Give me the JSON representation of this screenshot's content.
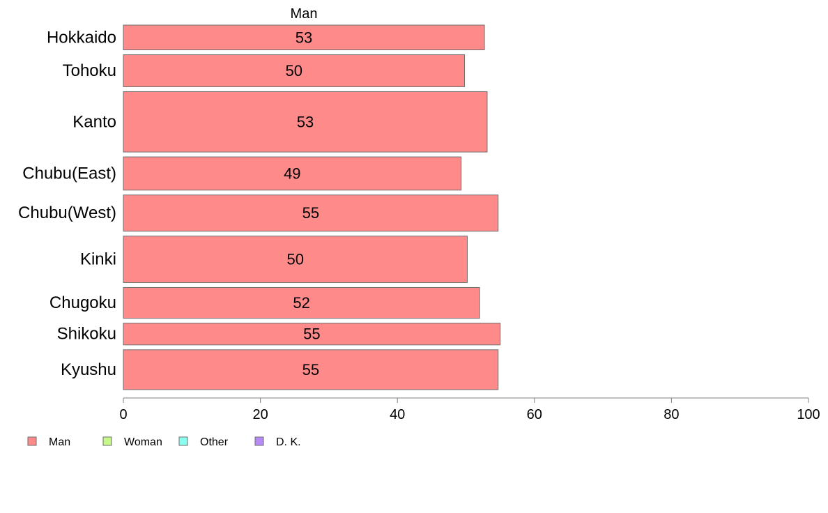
{
  "chart_data": {
    "type": "bar",
    "orientation": "horizontal",
    "title": "",
    "column_header": "Man",
    "xlabel": "",
    "ylabel": "",
    "xlim": [
      0,
      100
    ],
    "x_ticks": [
      0,
      20,
      40,
      60,
      80,
      100
    ],
    "grid": false,
    "legend_position": "bottom-left",
    "categories": [
      "Hokkaido",
      "Tohoku",
      "Kanto",
      "Chubu(East)",
      "Chubu(West)",
      "Kinki",
      "Chugoku",
      "Shikoku",
      "Kyushu"
    ],
    "relative_widths": [
      0.41,
      0.53,
      1.0,
      0.55,
      0.6,
      0.77,
      0.51,
      0.36,
      0.66
    ],
    "series": [
      {
        "name": "Man",
        "color": "#ff8a8a",
        "values": [
          52.7,
          49.8,
          53.1,
          49.3,
          54.7,
          50.2,
          52.0,
          55.0,
          54.7
        ],
        "labels": [
          "53",
          "50",
          "53",
          "49",
          "55",
          "50",
          "52",
          "55",
          "55"
        ]
      }
    ],
    "legend": [
      {
        "name": "Man",
        "color": "#ff8a8a"
      },
      {
        "name": "Woman",
        "color": "#c6f78a"
      },
      {
        "name": "Other",
        "color": "#8afff0"
      },
      {
        "name": "D. K.",
        "color": "#b78af7"
      }
    ]
  }
}
